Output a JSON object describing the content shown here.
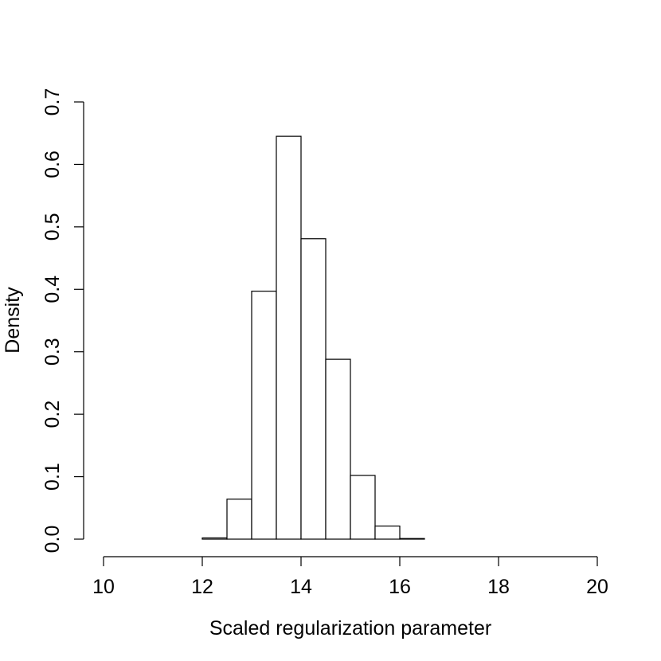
{
  "chart_data": {
    "type": "bar",
    "subtype": "histogram",
    "title": "",
    "xlabel": "Scaled regularization parameter",
    "ylabel": "Density",
    "xlim": [
      10,
      20
    ],
    "ylim": [
      0,
      0.7
    ],
    "x_ticks": [
      10,
      12,
      14,
      16,
      18,
      20
    ],
    "x_tick_labels": [
      "10",
      "12",
      "14",
      "16",
      "18",
      "20"
    ],
    "y_ticks": [
      0,
      0.1,
      0.2,
      0.3,
      0.4,
      0.5,
      0.6,
      0.7
    ],
    "y_tick_labels": [
      "0.0",
      "0.1",
      "0.2",
      "0.3",
      "0.4",
      "0.5",
      "0.6",
      "0.7"
    ],
    "bin_width": 0.5,
    "bins": [
      {
        "x0": 10.0,
        "x1": 10.5,
        "density": 0.0
      },
      {
        "x0": 10.5,
        "x1": 11.0,
        "density": 0.0
      },
      {
        "x0": 11.0,
        "x1": 11.5,
        "density": 0.0
      },
      {
        "x0": 11.5,
        "x1": 12.0,
        "density": 0.0
      },
      {
        "x0": 12.0,
        "x1": 12.5,
        "density": 0.002
      },
      {
        "x0": 12.5,
        "x1": 13.0,
        "density": 0.064
      },
      {
        "x0": 13.0,
        "x1": 13.5,
        "density": 0.397
      },
      {
        "x0": 13.5,
        "x1": 14.0,
        "density": 0.645
      },
      {
        "x0": 14.0,
        "x1": 14.5,
        "density": 0.481
      },
      {
        "x0": 14.5,
        "x1": 15.0,
        "density": 0.288
      },
      {
        "x0": 15.0,
        "x1": 15.5,
        "density": 0.102
      },
      {
        "x0": 15.5,
        "x1": 16.0,
        "density": 0.021
      },
      {
        "x0": 16.0,
        "x1": 16.5,
        "density": 0.001
      },
      {
        "x0": 16.5,
        "x1": 17.0,
        "density": 0.0
      },
      {
        "x0": 17.0,
        "x1": 17.5,
        "density": 0.0
      },
      {
        "x0": 17.5,
        "x1": 18.0,
        "density": 0.0
      },
      {
        "x0": 18.0,
        "x1": 18.5,
        "density": 0.0
      },
      {
        "x0": 18.5,
        "x1": 19.0,
        "density": 0.0
      },
      {
        "x0": 19.0,
        "x1": 19.5,
        "density": 0.0
      },
      {
        "x0": 19.5,
        "x1": 20.0,
        "density": 0.0
      }
    ],
    "grid": false,
    "legend": "none",
    "colors": {
      "bar_fill": "#ffffff",
      "bar_stroke": "#000000"
    }
  }
}
